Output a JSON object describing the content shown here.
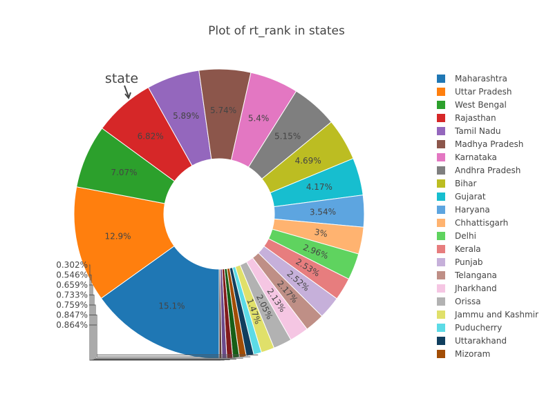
{
  "chart_data": {
    "type": "pie",
    "hole": true,
    "title": "Plot of rt_rank in states",
    "annotation": "state",
    "legend_position": "right",
    "slices": [
      {
        "label": "Maharashtra",
        "value": 15.1,
        "text": "15.1%",
        "color": "#1f77b4"
      },
      {
        "label": "Uttar Pradesh",
        "value": 12.9,
        "text": "12.9%",
        "color": "#ff7f0e"
      },
      {
        "label": "West Bengal",
        "value": 7.07,
        "text": "7.07%",
        "color": "#2ca02c"
      },
      {
        "label": "Rajasthan",
        "value": 6.82,
        "text": "6.82%",
        "color": "#d62728"
      },
      {
        "label": "Tamil Nadu",
        "value": 5.89,
        "text": "5.89%",
        "color": "#9467bd"
      },
      {
        "label": "Madhya Pradesh",
        "value": 5.74,
        "text": "5.74%",
        "color": "#8c564b"
      },
      {
        "label": "Karnataka",
        "value": 5.4,
        "text": "5.4%",
        "color": "#e377c2"
      },
      {
        "label": "Andhra Pradesh",
        "value": 5.15,
        "text": "5.15%",
        "color": "#7f7f7f"
      },
      {
        "label": "Bihar",
        "value": 4.69,
        "text": "4.69%",
        "color": "#bcbd22"
      },
      {
        "label": "Gujarat",
        "value": 4.17,
        "text": "4.17%",
        "color": "#17becf"
      },
      {
        "label": "Haryana",
        "value": 3.54,
        "text": "3.54%",
        "color": "#5da5e0"
      },
      {
        "label": "Chhattisgarh",
        "value": 3.0,
        "text": "3%",
        "color": "#ffb370"
      },
      {
        "label": "Delhi",
        "value": 2.96,
        "text": "2.96%",
        "color": "#5fd35f"
      },
      {
        "label": "Kerala",
        "value": 2.53,
        "text": "2.53%",
        "color": "#e77d7e"
      },
      {
        "label": "Punjab",
        "value": 2.52,
        "text": "2.52%",
        "color": "#c6b0da"
      },
      {
        "label": "Telangana",
        "value": 2.17,
        "text": "2.17%",
        "color": "#bf8f86"
      },
      {
        "label": "Jharkhand",
        "value": 2.13,
        "text": "2.13%",
        "color": "#f5c6e3"
      },
      {
        "label": "Orissa",
        "value": 2.05,
        "text": "2.05%",
        "color": "#b2b2b2"
      },
      {
        "label": "Jammu and Kashmir",
        "value": 1.47,
        "text": "1.47%",
        "color": "#e0e06a"
      },
      {
        "label": "Puducherry",
        "value": 0.864,
        "text": "0.864%",
        "color": "#5cdbe6"
      },
      {
        "label": "Uttarakhand",
        "value": 0.847,
        "text": "0.847%",
        "color": "#103e5e"
      },
      {
        "label": "Mizoram",
        "value": 0.759,
        "text": "0.759%",
        "color": "#a24d05"
      },
      {
        "label": "",
        "value": 0.733,
        "text": "0.733%",
        "color": "#175e17"
      },
      {
        "label": "",
        "value": 0.659,
        "text": "0.659%",
        "color": "#801a1b"
      },
      {
        "label": "",
        "value": 0.546,
        "text": "0.546%",
        "color": "#6b4a8b"
      },
      {
        "label": "",
        "value": 0.302,
        "text": "0.302%",
        "color": "#5c3c36"
      }
    ],
    "legend_items": [
      "Maharashtra",
      "Uttar Pradesh",
      "West Bengal",
      "Rajasthan",
      "Tamil Nadu",
      "Madhya Pradesh",
      "Karnataka",
      "Andhra Pradesh",
      "Bihar",
      "Gujarat",
      "Haryana",
      "Chhattisgarh",
      "Delhi",
      "Kerala",
      "Punjab",
      "Telangana",
      "Jharkhand",
      "Orissa",
      "Jammu and Kashmir",
      "Puducherry",
      "Uttarakhand",
      "Mizoram"
    ]
  }
}
